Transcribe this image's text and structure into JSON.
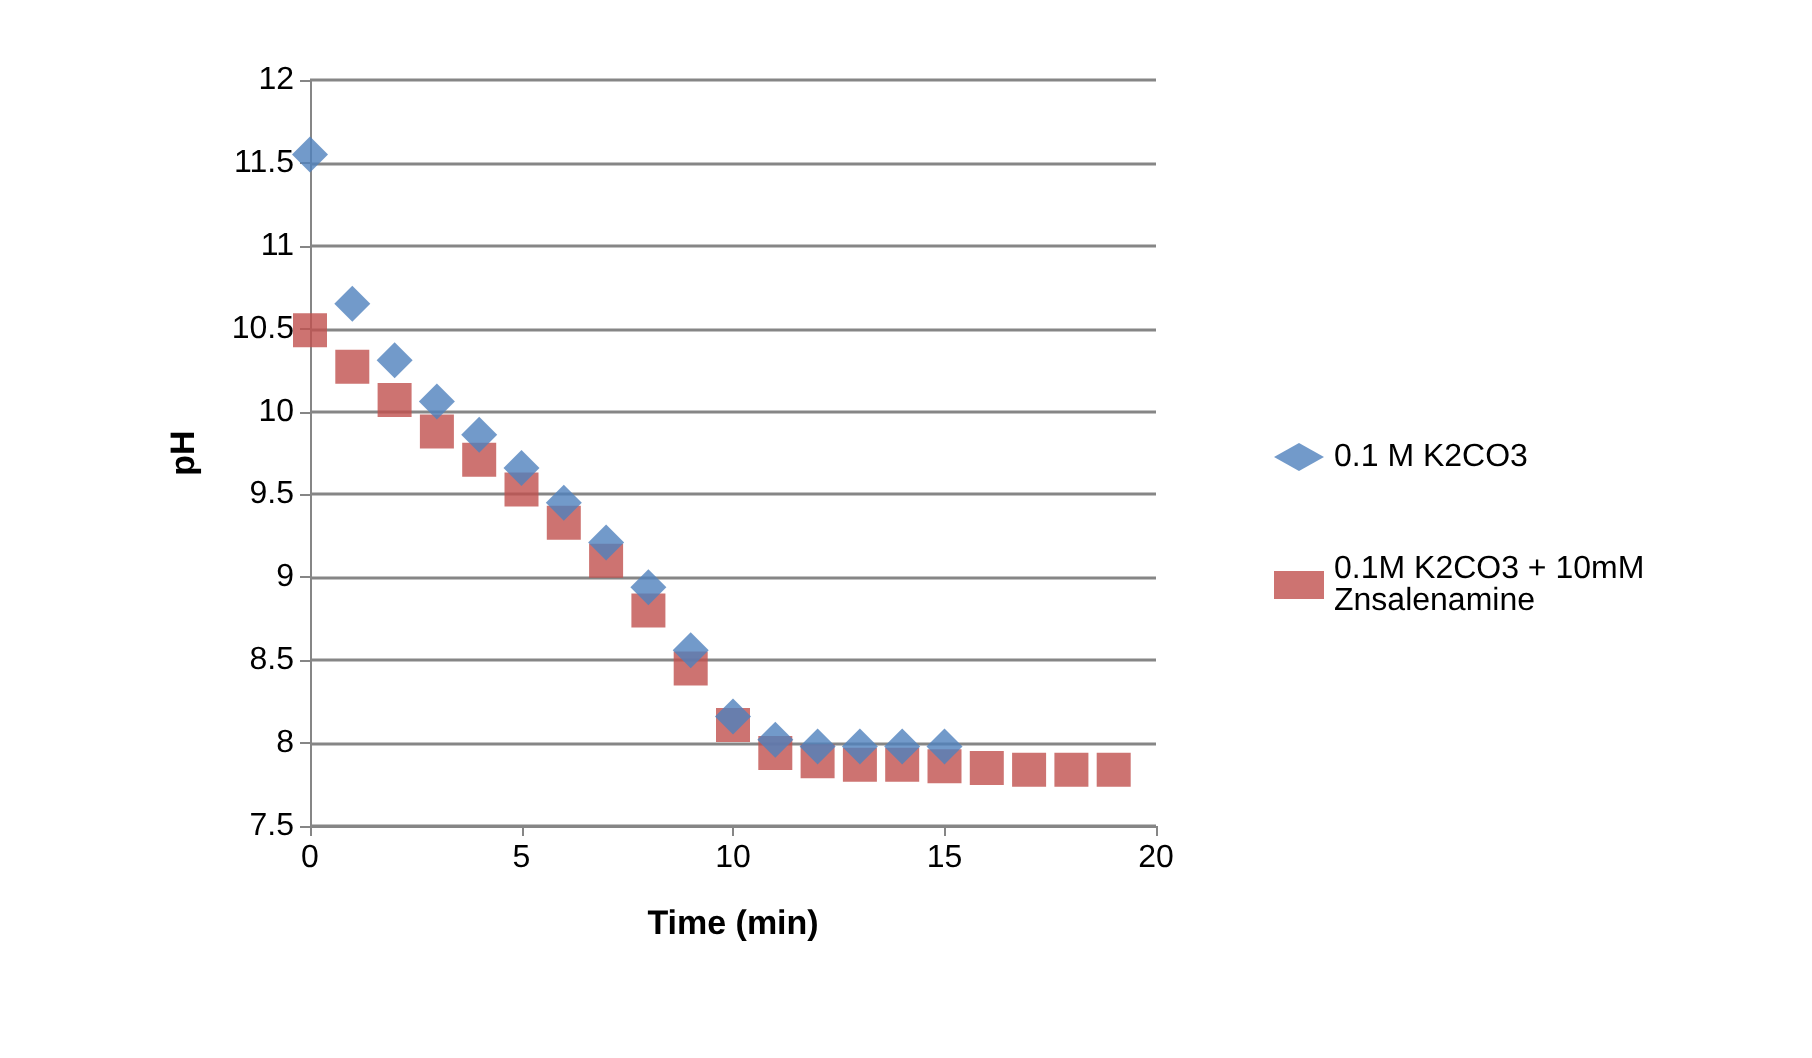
{
  "chart_data": {
    "type": "scatter",
    "xlabel": "Time (min)",
    "ylabel": "pH",
    "x": [
      0,
      1,
      2,
      3,
      4,
      5,
      6,
      7,
      8,
      9,
      10,
      11,
      12,
      13,
      14,
      15,
      16,
      17,
      18,
      19
    ],
    "series": [
      {
        "name": "0.1 M K2CO3",
        "color": "#4f81bd",
        "marker": "diamond",
        "x": [
          0,
          1,
          2,
          3,
          4,
          5,
          6,
          7,
          8,
          9,
          10,
          11,
          12,
          13,
          14,
          15
        ],
        "values": [
          11.55,
          10.65,
          10.31,
          10.06,
          9.86,
          9.66,
          9.45,
          9.21,
          8.94,
          8.56,
          8.16,
          8.02,
          7.98,
          7.98,
          7.98,
          7.98
        ]
      },
      {
        "name": "0.1M K2CO3 + 10mM Znsalenamine",
        "color": "#c0504d",
        "marker": "square",
        "values": [
          10.49,
          10.27,
          10.07,
          9.88,
          9.71,
          9.53,
          9.33,
          9.1,
          8.8,
          8.45,
          8.11,
          7.94,
          7.89,
          7.87,
          7.87,
          7.86,
          7.85,
          7.84,
          7.84,
          7.84
        ]
      }
    ],
    "xlim": [
      0,
      20
    ],
    "xticks": [
      0,
      5,
      10,
      15,
      20
    ],
    "ylim": [
      7.5,
      12
    ],
    "yticks": [
      7.5,
      8,
      8.5,
      9,
      9.5,
      10,
      10.5,
      11,
      11.5,
      12
    ],
    "grid": "y",
    "legend": "right"
  }
}
